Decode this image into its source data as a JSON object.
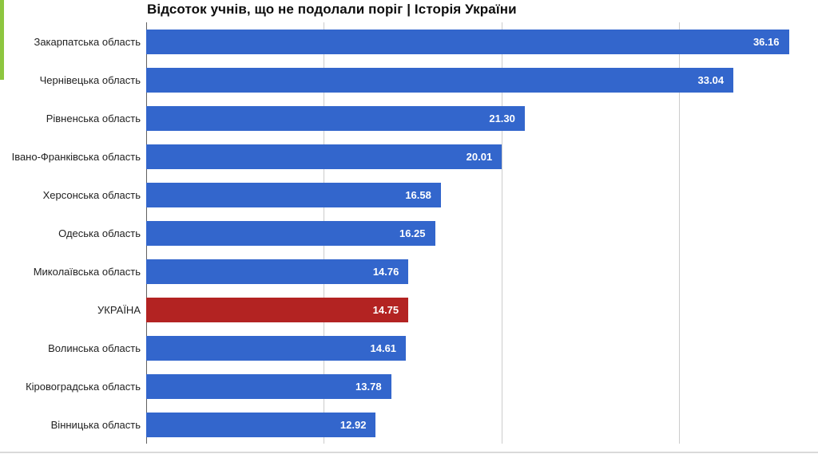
{
  "page": {
    "background": "#FFFFFF"
  },
  "accent_stripe": {
    "color": "#8DC63F"
  },
  "divider": {
    "color": "#DADADA"
  },
  "chart_data": {
    "type": "bar",
    "orientation": "horizontal",
    "title": "Відсоток учнів, що не подолали поріг | Історія України",
    "xlabel": "",
    "ylabel": "",
    "legend": "none",
    "categories": [
      "Закарпатська область",
      "Чернівецька область",
      "Рівненська область",
      "Івано-Франківська область",
      "Херсонська область",
      "Одеська область",
      "Миколаївська область",
      "УКРАЇНА",
      "Волинська область",
      "Кіровоградська область",
      "Вінницька область"
    ],
    "values": [
      36.16,
      33.04,
      21.3,
      20.01,
      16.58,
      16.25,
      14.76,
      14.75,
      14.61,
      13.78,
      12.92
    ],
    "value_labels": [
      "36.16",
      "33.04",
      "21.30",
      "20.01",
      "16.58",
      "16.25",
      "14.76",
      "14.75",
      "14.61",
      "13.78",
      "12.92"
    ],
    "highlight_index": 7,
    "bar_color": "#3366CC",
    "highlight_color": "#B32322",
    "value_label_color": "#FFFFFF",
    "category_label_color": "#222222",
    "title_color": "#0D0D0D",
    "axis_color": "#616161",
    "gridline_color": "#CCCCCC",
    "xlim": [
      0,
      37.8
    ],
    "gridlines": [
      10,
      20,
      30
    ],
    "grid": "vertical-only"
  }
}
